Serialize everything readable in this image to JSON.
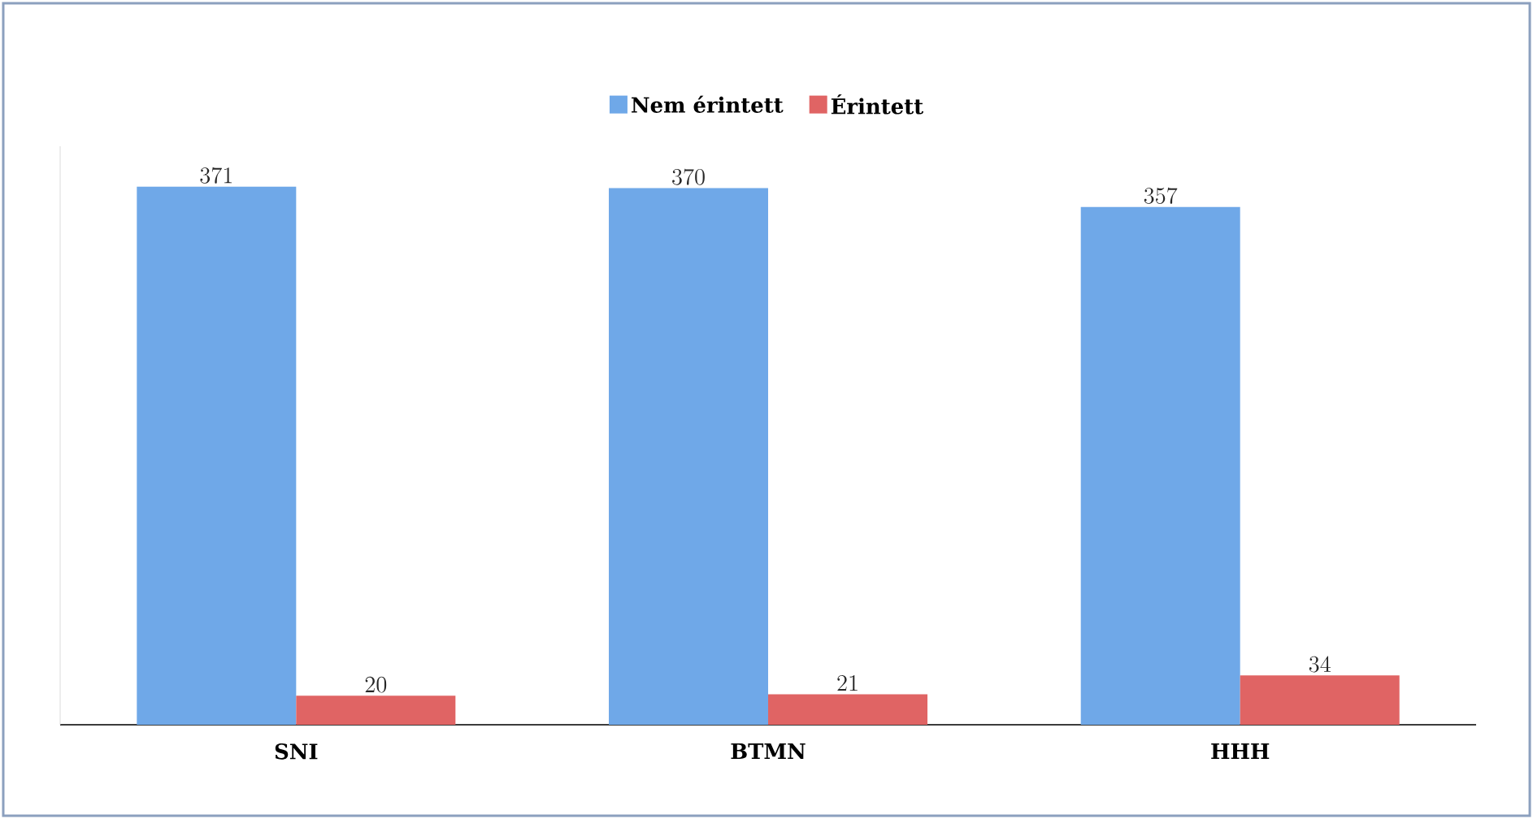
{
  "chart_data": {
    "type": "bar",
    "categories": [
      "SNI",
      "BTMN",
      "HHH"
    ],
    "series": [
      {
        "name": "Nem érintett",
        "color": "#6fa8e8",
        "values": [
          371,
          370,
          357
        ]
      },
      {
        "name": "Érintett",
        "color": "#e06464",
        "values": [
          20,
          21,
          34
        ]
      }
    ],
    "data_labels": true,
    "legend": "top"
  }
}
